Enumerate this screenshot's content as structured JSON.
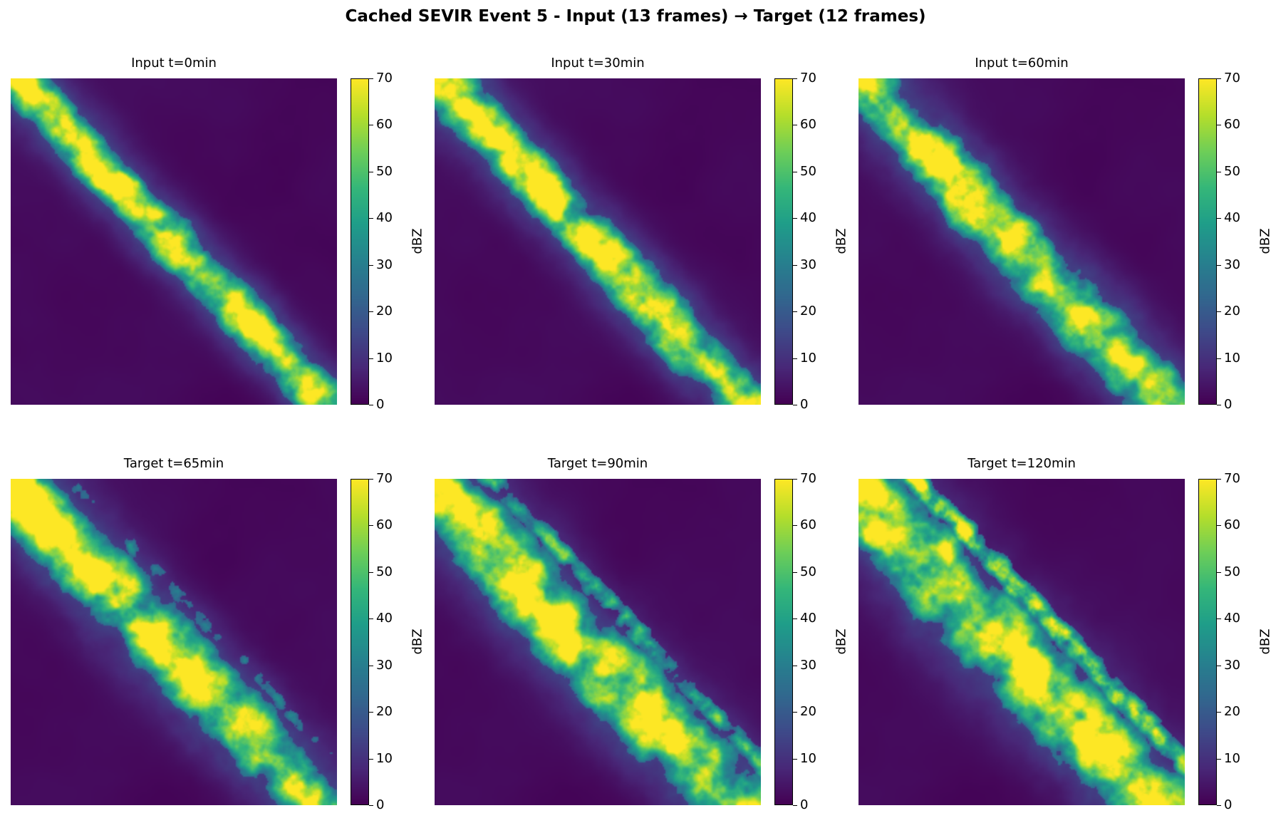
{
  "figure": {
    "title": "Cached SEVIR Event 5 - Input (13 frames) → Target (12 frames)"
  },
  "colors": {
    "colormap": "viridis",
    "min_color": "#440154",
    "max_color": "#fde725"
  },
  "chart_data": [
    {
      "type": "heatmap",
      "title": "Input t=0min",
      "colorbar_label": "dBZ",
      "vmin": 0,
      "vmax": 70,
      "colorbar_ticks": [
        0,
        10,
        20,
        30,
        40,
        50,
        60,
        70
      ],
      "axes": "off",
      "grid": false,
      "frame": 0
    },
    {
      "type": "heatmap",
      "title": "Input t=30min",
      "colorbar_label": "dBZ",
      "vmin": 0,
      "vmax": 70,
      "colorbar_ticks": [
        0,
        10,
        20,
        30,
        40,
        50,
        60,
        70
      ],
      "axes": "off",
      "grid": false,
      "frame": 1
    },
    {
      "type": "heatmap",
      "title": "Input t=60min",
      "colorbar_label": "dBZ",
      "vmin": 0,
      "vmax": 70,
      "colorbar_ticks": [
        0,
        10,
        20,
        30,
        40,
        50,
        60,
        70
      ],
      "axes": "off",
      "grid": false,
      "frame": 2
    },
    {
      "type": "heatmap",
      "title": "Target t=65min",
      "colorbar_label": "dBZ",
      "vmin": 0,
      "vmax": 70,
      "colorbar_ticks": [
        0,
        10,
        20,
        30,
        40,
        50,
        60,
        70
      ],
      "axes": "off",
      "grid": false,
      "frame": 3
    },
    {
      "type": "heatmap",
      "title": "Target t=90min",
      "colorbar_label": "dBZ",
      "vmin": 0,
      "vmax": 70,
      "colorbar_ticks": [
        0,
        10,
        20,
        30,
        40,
        50,
        60,
        70
      ],
      "axes": "off",
      "grid": false,
      "frame": 4
    },
    {
      "type": "heatmap",
      "title": "Target t=120min",
      "colorbar_label": "dBZ",
      "vmin": 0,
      "vmax": 70,
      "colorbar_ticks": [
        0,
        10,
        20,
        30,
        40,
        50,
        60,
        70
      ],
      "axes": "off",
      "grid": false,
      "frame": 5
    }
  ]
}
